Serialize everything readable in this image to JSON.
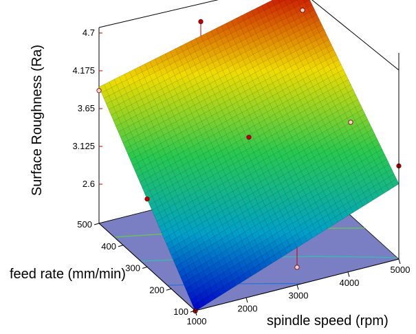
{
  "chart_data": {
    "type": "surface3d",
    "zlabel": "Surface Roughness (Ra)",
    "xlabel": "spindle speed (rpm)",
    "ylabel": "feed rate (mm/min)",
    "x_ticks": [
      "1000",
      "2000",
      "3000",
      "4000",
      "5000"
    ],
    "y_ticks": [
      "100",
      "200",
      "300",
      "400",
      "500"
    ],
    "z_ticks": [
      "2.6",
      "3.125",
      "3.65",
      "4.175",
      "4.7"
    ],
    "xlim": [
      1000,
      5000
    ],
    "ylim": [
      100,
      500
    ],
    "zlim": [
      2.05,
      4.7
    ],
    "surface": {
      "corners": [
        {
          "x": 1000,
          "y": 100,
          "z": 2.05
        },
        {
          "x": 5000,
          "y": 100,
          "z": 3.1
        },
        {
          "x": 1000,
          "y": 500,
          "z": 3.95
        },
        {
          "x": 5000,
          "y": 500,
          "z": 4.65
        }
      ],
      "colormap": [
        "#0000c8",
        "#00a0c8",
        "#28c850",
        "#f0dc00",
        "#c80000"
      ]
    },
    "design_points": [
      {
        "x": 1000,
        "y": 100,
        "z": 2.05
      },
      {
        "x": 5000,
        "y": 100,
        "z": 3.35
      },
      {
        "x": 1000,
        "y": 500,
        "z": 3.9
      },
      {
        "x": 5000,
        "y": 500,
        "z": 4.3
      },
      {
        "x": 3000,
        "y": 300,
        "z": 3.5
      },
      {
        "x": 3000,
        "y": 100,
        "z": 2.3
      },
      {
        "x": 5000,
        "y": 300,
        "z": 3.35
      },
      {
        "x": 1000,
        "y": 300,
        "z": 3.0
      },
      {
        "x": 3000,
        "y": 500,
        "z": 4.5
      }
    ],
    "contour_floor_color": "#7a7fc4",
    "contour_levels": [
      2.6,
      3.125,
      3.65,
      4.175
    ]
  }
}
